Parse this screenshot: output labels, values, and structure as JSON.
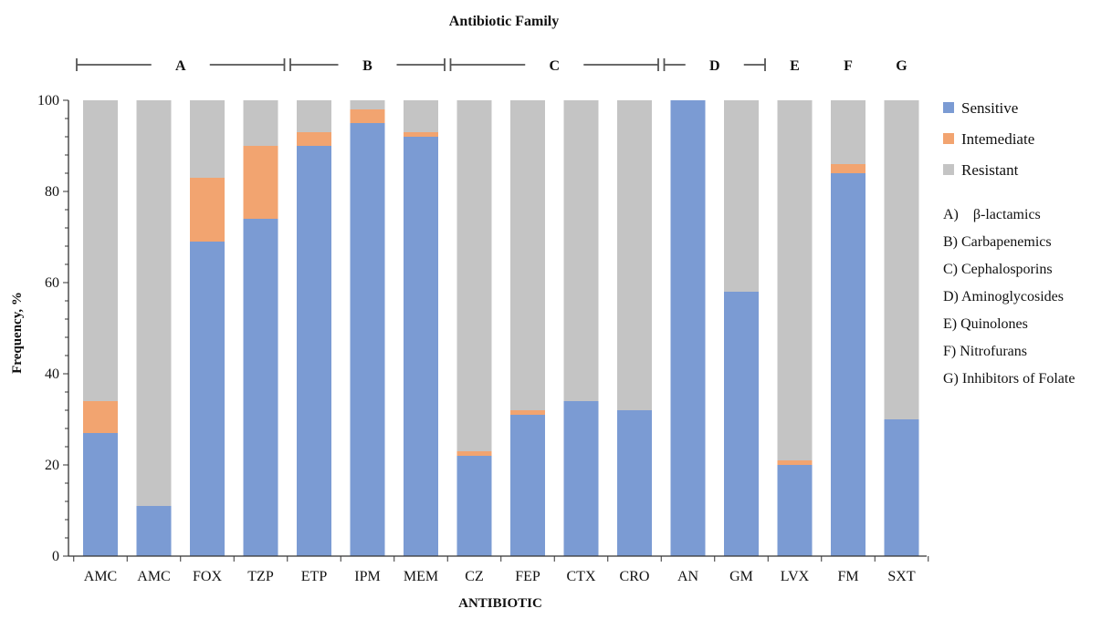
{
  "chart_data": {
    "type": "bar",
    "stacked": true,
    "title": "Antibiotic Family",
    "xlabel": "ANTIBIOTIC",
    "ylabel": "Frequency, %",
    "ylim": [
      0,
      100
    ],
    "yticks": [
      0,
      20,
      40,
      60,
      80,
      100
    ],
    "categories": [
      "AMC",
      "AMC",
      "FOX",
      "TZP",
      "ETP",
      "IPM",
      "MEM",
      "CZ",
      "FEP",
      "CTX",
      "CRO",
      "AN",
      "GM",
      "LVX",
      "FM",
      "SXT"
    ],
    "series": [
      {
        "name": "Sensitive",
        "color": "#7b9bd3",
        "values": [
          27,
          11,
          69,
          74,
          90,
          95,
          92,
          22,
          31,
          34,
          32,
          100,
          58,
          20,
          84,
          30
        ]
      },
      {
        "name": "Intemediate",
        "color": "#f2a470",
        "values": [
          7,
          0,
          14,
          16,
          3,
          3,
          1,
          1,
          1,
          0,
          0,
          0,
          0,
          1,
          2,
          0
        ]
      },
      {
        "name": "Resistant",
        "color": "#c4c4c4",
        "values": [
          66,
          89,
          17,
          10,
          7,
          2,
          7,
          77,
          68,
          66,
          68,
          0,
          42,
          79,
          14,
          70
        ]
      }
    ],
    "families": [
      {
        "label": "A",
        "from": 0,
        "to": 3
      },
      {
        "label": "B",
        "from": 4,
        "to": 6
      },
      {
        "label": "C",
        "from": 7,
        "to": 10
      },
      {
        "label": "D",
        "from": 11,
        "to": 12
      },
      {
        "label": "E",
        "from": 13,
        "to": 13
      },
      {
        "label": "F",
        "from": 14,
        "to": 14
      },
      {
        "label": "G",
        "from": 15,
        "to": 15
      }
    ],
    "family_key": [
      "A) β-lactamics",
      "B) Carbapenemics",
      "C) Cephalosporins",
      "D) Aminoglycosides",
      "E) Quinolones",
      "F) Nitrofurans",
      "G) Inhibitors of Folate"
    ],
    "legend_position": "right",
    "grid": false
  }
}
